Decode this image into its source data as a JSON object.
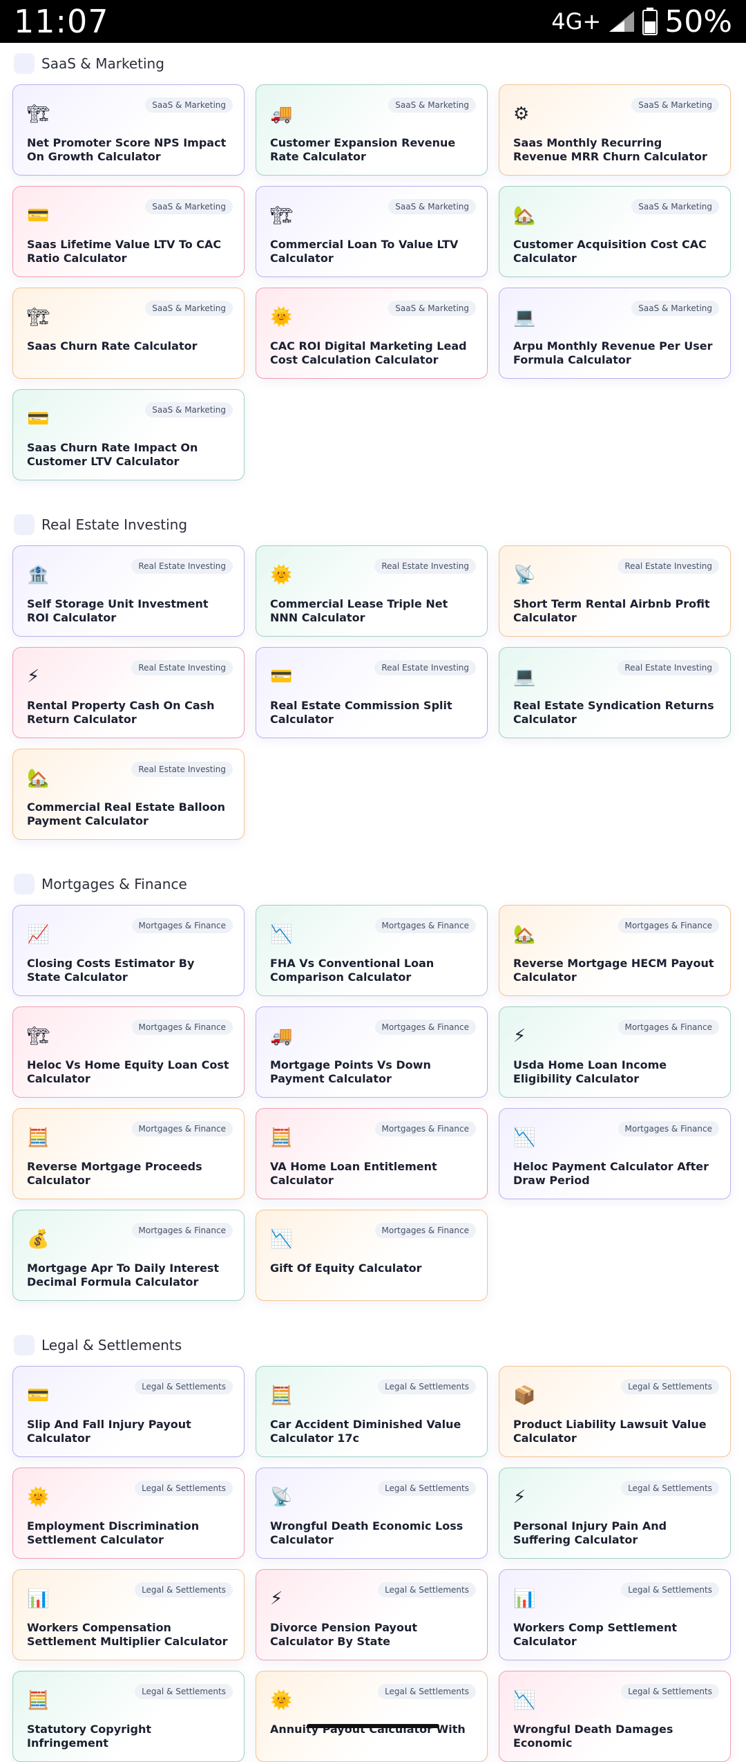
{
  "status_bar": {
    "time": "11:07",
    "network": "4G+",
    "battery": "50%"
  },
  "sections": [
    {
      "title": "SaaS & Marketing",
      "cards": [
        {
          "title": "Net Promoter Score NPS Impact On Growth Calculator",
          "badge": "SaaS & Marketing",
          "icon": "crane-icon",
          "glyph": "🏗",
          "color": "purple"
        },
        {
          "title": "Customer Expansion Revenue Rate Calculator",
          "badge": "SaaS & Marketing",
          "icon": "truck-icon",
          "glyph": "🚚",
          "color": "green"
        },
        {
          "title": "Saas Monthly Recurring Revenue MRR Churn Calculator",
          "badge": "SaaS & Marketing",
          "icon": "gear-icon",
          "glyph": "⚙",
          "color": "orange"
        },
        {
          "title": "Saas Lifetime Value LTV To CAC Ratio Calculator",
          "badge": "SaaS & Marketing",
          "icon": "credit-card-icon",
          "glyph": "💳",
          "color": "pink"
        },
        {
          "title": "Commercial Loan To Value LTV Calculator",
          "badge": "SaaS & Marketing",
          "icon": "crane-icon",
          "glyph": "🏗",
          "color": "purple"
        },
        {
          "title": "Customer Acquisition Cost CAC Calculator",
          "badge": "SaaS & Marketing",
          "icon": "house-icon",
          "glyph": "🏡",
          "color": "green"
        },
        {
          "title": "Saas Churn Rate Calculator",
          "badge": "SaaS & Marketing",
          "icon": "crane-icon",
          "glyph": "🏗",
          "color": "orange"
        },
        {
          "title": "CAC ROI Digital Marketing Lead Cost Calculation Calculator",
          "badge": "SaaS & Marketing",
          "icon": "sun-icon",
          "glyph": "🌞",
          "color": "pink"
        },
        {
          "title": "Arpu Monthly Revenue Per User Formula Calculator",
          "badge": "SaaS & Marketing",
          "icon": "laptop-icon",
          "glyph": "💻",
          "color": "purple"
        },
        {
          "title": "Saas Churn Rate Impact On Customer LTV Calculator",
          "badge": "SaaS & Marketing",
          "icon": "credit-card-icon",
          "glyph": "💳",
          "color": "green"
        }
      ]
    },
    {
      "title": "Real Estate Investing",
      "cards": [
        {
          "title": "Self Storage Unit Investment ROI Calculator",
          "badge": "Real Estate Investing",
          "icon": "bank-icon",
          "glyph": "🏦",
          "color": "purple"
        },
        {
          "title": "Commercial Lease Triple Net NNN Calculator",
          "badge": "Real Estate Investing",
          "icon": "sun-icon",
          "glyph": "🌞",
          "color": "green"
        },
        {
          "title": "Short Term Rental Airbnb Profit Calculator",
          "badge": "Real Estate Investing",
          "icon": "satellite-icon",
          "glyph": "📡",
          "color": "orange"
        },
        {
          "title": "Rental Property Cash On Cash Return Calculator",
          "badge": "Real Estate Investing",
          "icon": "lightning-icon",
          "glyph": "⚡",
          "color": "pink"
        },
        {
          "title": "Real Estate Commission Split Calculator",
          "badge": "Real Estate Investing",
          "icon": "credit-card-icon",
          "glyph": "💳",
          "color": "purple"
        },
        {
          "title": "Real Estate Syndication Returns Calculator",
          "badge": "Real Estate Investing",
          "icon": "laptop-icon",
          "glyph": "💻",
          "color": "green"
        },
        {
          "title": "Commercial Real Estate Balloon Payment Calculator",
          "badge": "Real Estate Investing",
          "icon": "house-icon",
          "glyph": "🏡",
          "color": "orange"
        }
      ]
    },
    {
      "title": "Mortgages & Finance",
      "cards": [
        {
          "title": "Closing Costs Estimator By State Calculator",
          "badge": "Mortgages & Finance",
          "icon": "chart-up-icon",
          "glyph": "📈",
          "color": "purple"
        },
        {
          "title": "FHA Vs Conventional Loan Comparison Calculator",
          "badge": "Mortgages & Finance",
          "icon": "chart-down-icon",
          "glyph": "📉",
          "color": "green"
        },
        {
          "title": "Reverse Mortgage HECM Payout Calculator",
          "badge": "Mortgages & Finance",
          "icon": "house-icon",
          "glyph": "🏡",
          "color": "orange"
        },
        {
          "title": "Heloc Vs Home Equity Loan Cost Calculator",
          "badge": "Mortgages & Finance",
          "icon": "crane-icon",
          "glyph": "🏗",
          "color": "pink"
        },
        {
          "title": "Mortgage Points Vs Down Payment Calculator",
          "badge": "Mortgages & Finance",
          "icon": "truck-icon",
          "glyph": "🚚",
          "color": "purple"
        },
        {
          "title": "Usda Home Loan Income Eligibility Calculator",
          "badge": "Mortgages & Finance",
          "icon": "lightning-icon",
          "glyph": "⚡",
          "color": "green"
        },
        {
          "title": "Reverse Mortgage Proceeds Calculator",
          "badge": "Mortgages & Finance",
          "icon": "abacus-icon",
          "glyph": "🧮",
          "color": "orange"
        },
        {
          "title": "VA Home Loan Entitlement Calculator",
          "badge": "Mortgages & Finance",
          "icon": "abacus-icon",
          "glyph": "🧮",
          "color": "pink"
        },
        {
          "title": "Heloc Payment Calculator After Draw Period",
          "badge": "Mortgages & Finance",
          "icon": "chart-down-icon",
          "glyph": "📉",
          "color": "purple"
        },
        {
          "title": "Mortgage Apr To Daily Interest Decimal Formula Calculator",
          "badge": "Mortgages & Finance",
          "icon": "money-bag-icon",
          "glyph": "💰",
          "color": "green"
        },
        {
          "title": "Gift Of Equity Calculator",
          "badge": "Mortgages & Finance",
          "icon": "chart-down-icon",
          "glyph": "📉",
          "color": "orange"
        }
      ]
    },
    {
      "title": "Legal & Settlements",
      "cards": [
        {
          "title": "Slip And Fall Injury Payout Calculator",
          "badge": "Legal & Settlements",
          "icon": "credit-card-icon",
          "glyph": "💳",
          "color": "purple"
        },
        {
          "title": "Car Accident Diminished Value Calculator 17c",
          "badge": "Legal & Settlements",
          "icon": "abacus-icon",
          "glyph": "🧮",
          "color": "green"
        },
        {
          "title": "Product Liability Lawsuit Value Calculator",
          "badge": "Legal & Settlements",
          "icon": "package-icon",
          "glyph": "📦",
          "color": "orange"
        },
        {
          "title": "Employment Discrimination Settlement Calculator",
          "badge": "Legal & Settlements",
          "icon": "sun-icon",
          "glyph": "🌞",
          "color": "pink"
        },
        {
          "title": "Wrongful Death Economic Loss Calculator",
          "badge": "Legal & Settlements",
          "icon": "satellite-icon",
          "glyph": "📡",
          "color": "purple"
        },
        {
          "title": "Personal Injury Pain And Suffering Calculator",
          "badge": "Legal & Settlements",
          "icon": "lightning-icon",
          "glyph": "⚡",
          "color": "green"
        },
        {
          "title": "Workers Compensation Settlement Multiplier Calculator",
          "badge": "Legal & Settlements",
          "icon": "bar-chart-icon",
          "glyph": "📊",
          "color": "orange"
        },
        {
          "title": "Divorce Pension Payout Calculator By State",
          "badge": "Legal & Settlements",
          "icon": "lightning-icon",
          "glyph": "⚡",
          "color": "pink"
        },
        {
          "title": "Workers Comp Settlement Calculator",
          "badge": "Legal & Settlements",
          "icon": "bar-chart-icon",
          "glyph": "📊",
          "color": "purple"
        },
        {
          "title": "Statutory Copyright Infringement",
          "badge": "Legal & Settlements",
          "icon": "abacus-icon",
          "glyph": "🧮",
          "color": "green"
        },
        {
          "title": "Annuity Payout Calculator With",
          "badge": "Legal & Settlements",
          "icon": "sun-icon",
          "glyph": "🌞",
          "color": "orange"
        },
        {
          "title": "Wrongful Death Damages Economic",
          "badge": "Legal & Settlements",
          "icon": "chart-down-icon",
          "glyph": "📉",
          "color": "pink"
        }
      ]
    }
  ]
}
